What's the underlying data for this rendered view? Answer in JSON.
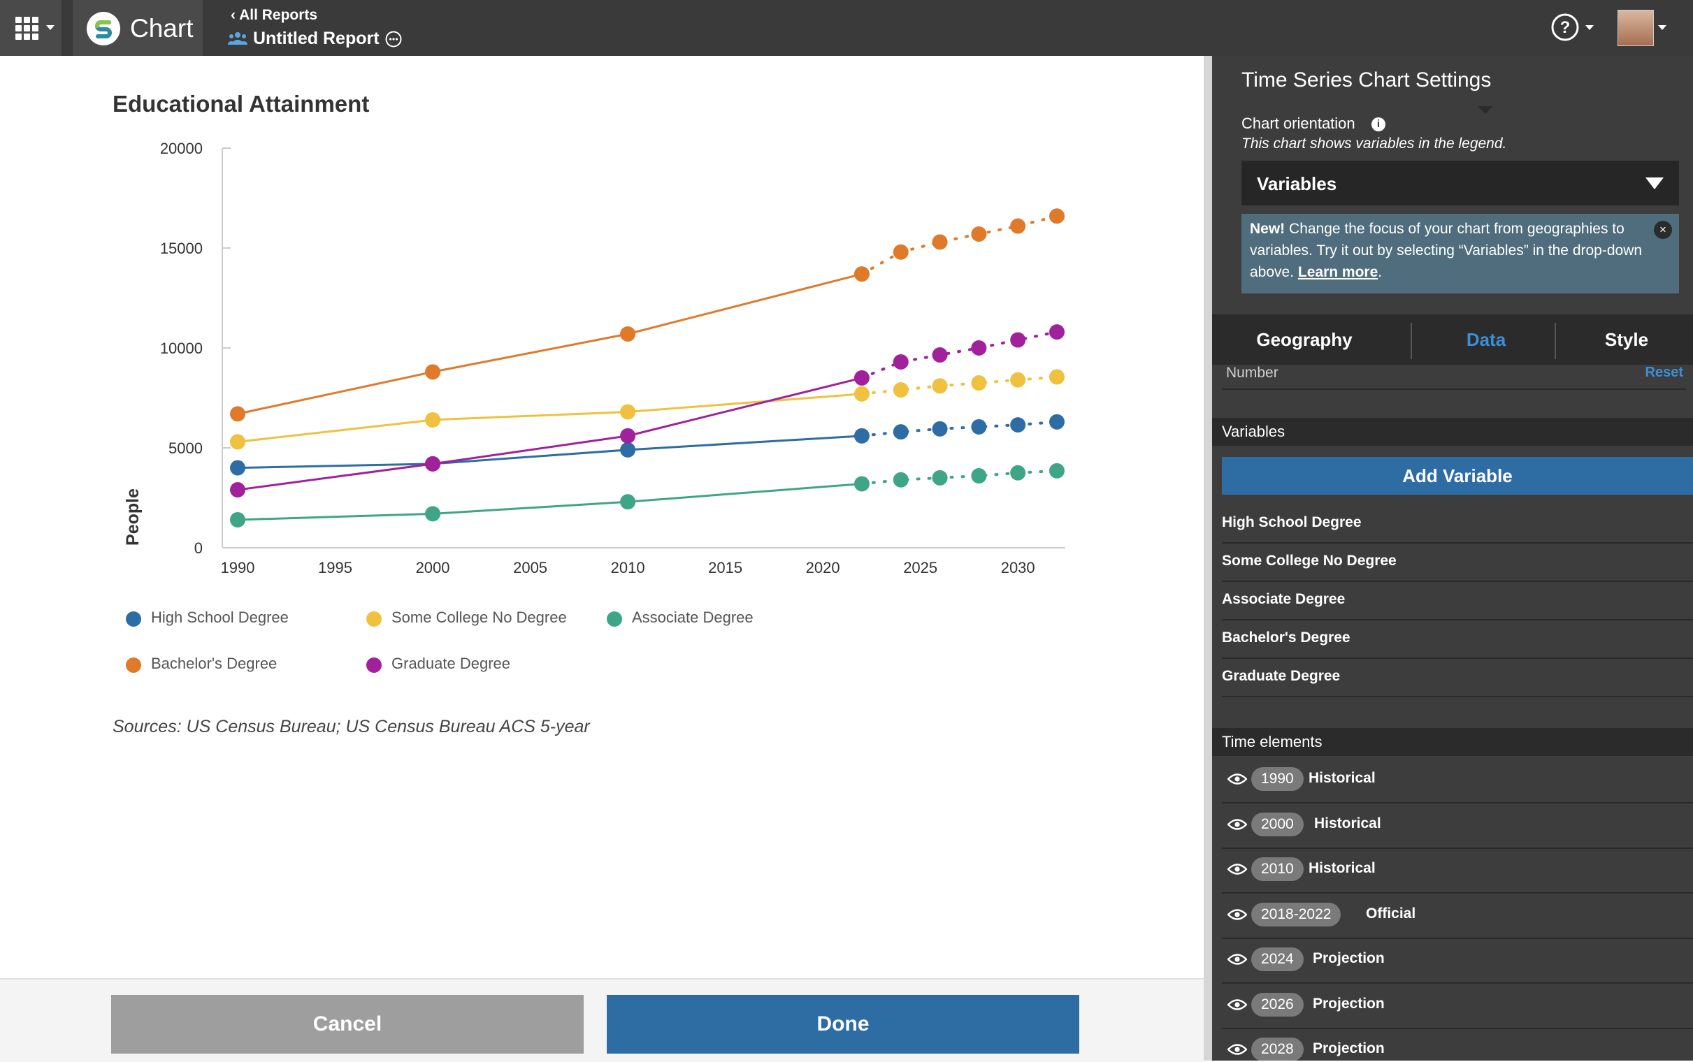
{
  "app": {
    "name": "Chart"
  },
  "header": {
    "back_label": "All Reports",
    "report_title": "Untitled Report"
  },
  "chart_data": {
    "type": "line",
    "title": "Educational Attainment",
    "ylabel": "People",
    "xlabel": "",
    "ylim": [
      0,
      20000
    ],
    "xlim": [
      1990,
      2033
    ],
    "y_ticks": [
      0,
      5000,
      10000,
      15000,
      20000
    ],
    "x_ticks": [
      1990,
      1995,
      2000,
      2005,
      2010,
      2015,
      2020,
      2025,
      2030
    ],
    "x_solid": [
      1990,
      2000,
      2010,
      2022
    ],
    "x_projected": [
      2022,
      2024,
      2026,
      2028,
      2030,
      2032
    ],
    "series": [
      {
        "name": "High School Degree",
        "color": "#2e6da4",
        "values": [
          4000,
          4200,
          4900,
          5600
        ],
        "projected": [
          5600,
          5800,
          5950,
          6050,
          6150,
          6300
        ]
      },
      {
        "name": "Some College No Degree",
        "color": "#f0c13f",
        "values": [
          5300,
          6400,
          6800,
          7700
        ],
        "projected": [
          7700,
          7900,
          8100,
          8250,
          8400,
          8550
        ]
      },
      {
        "name": "Associate Degree",
        "color": "#3fa587",
        "values": [
          1400,
          1700,
          2300,
          3200
        ],
        "projected": [
          3200,
          3400,
          3500,
          3600,
          3750,
          3850
        ]
      },
      {
        "name": "Bachelor's Degree",
        "color": "#e07a2b",
        "values": [
          6700,
          8800,
          10700,
          13700
        ],
        "projected": [
          13700,
          14800,
          15300,
          15700,
          16100,
          16600
        ]
      },
      {
        "name": "Graduate Degree",
        "color": "#a0219b",
        "values": [
          2900,
          4200,
          5600,
          8500
        ],
        "projected": [
          8500,
          9300,
          9650,
          10000,
          10400,
          10800
        ]
      }
    ],
    "legend_position": "bottom",
    "grid": false
  },
  "sources": "Sources: US Census Bureau; US Census Bureau ACS 5-year",
  "footer": {
    "cancel_label": "Cancel",
    "done_label": "Done"
  },
  "panel": {
    "title": "Time Series Chart Settings",
    "orientation_label": "Chart orientation",
    "orientation_note": "This chart shows variables in the legend.",
    "orientation_value": "Variables",
    "notice": {
      "bold": "New!",
      "text": " Change the focus of your chart from geographies to variables. Try it out by selecting “Variables” in the drop-down above. ",
      "link": "Learn more",
      "end": "."
    },
    "tabs": [
      "Geography",
      "Data",
      "Style"
    ],
    "number_label": "Number",
    "reset_label": "Reset",
    "variables_header": "Variables",
    "add_variable_label": "Add Variable",
    "variables": [
      "High School Degree",
      "Some College No Degree",
      "Associate Degree",
      "Bachelor's Degree",
      "Graduate Degree"
    ],
    "time_header": "Time elements",
    "time_elements": [
      {
        "year": "1990",
        "type": "Historical"
      },
      {
        "year": "2000",
        "type": "Historical"
      },
      {
        "year": "2010",
        "type": "Historical"
      },
      {
        "year": "2018-2022",
        "type": "Official"
      },
      {
        "year": "2024",
        "type": "Projection"
      },
      {
        "year": "2026",
        "type": "Projection"
      },
      {
        "year": "2028",
        "type": "Projection"
      }
    ]
  },
  "colors": {
    "topbar": "#3a3a3a",
    "panel": "#3d3d3d",
    "accent": "#2e6da4",
    "active_tab": "#3b8fd8"
  }
}
